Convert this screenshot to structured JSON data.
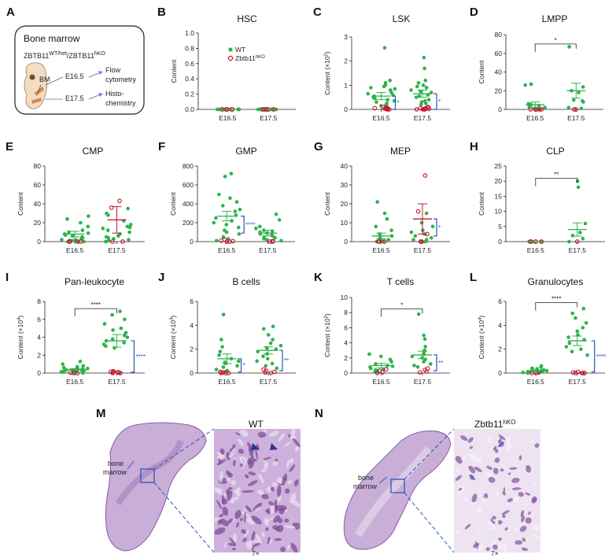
{
  "colors": {
    "wt": "#2db34a",
    "ko": "#c8102e",
    "blue": "#2a55b8",
    "he_bg": "#c4a6d0",
    "he_dark": "#6b3a86"
  },
  "schematic": {
    "title": "Bone marrow",
    "genotype_main": "ZBTB11",
    "genotype_sup1": "WT/het",
    "genotype_mid": "/ZBTB11",
    "genotype_sup2": "hKO",
    "bm": "BM",
    "e165": "E16.5",
    "e175": "E17.5",
    "flow1": "Flow",
    "flow2": "cytometry",
    "histo1": "Histo-",
    "histo2": "chemistry"
  },
  "legend": {
    "wt": "WT",
    "ko_main": "Zbtb11",
    "ko_sup": "hKO"
  },
  "histology": {
    "m_label": "M",
    "n_label": "N",
    "m_title": "WT",
    "n_title_main": "Zbtb11",
    "n_title_sup": "hKO",
    "bone1": "bone",
    "bone2": "marrow",
    "mag": "7×"
  },
  "chart_data": [
    {
      "panel": "A",
      "type": "diagram"
    },
    {
      "panel": "B",
      "type": "scatter",
      "title": "HSC",
      "ylabel": "Content",
      "ylabel_exp": "",
      "ylim": [
        0,
        1.0
      ],
      "yticks": [
        "0.0",
        "0.2",
        "0.4",
        "0.6",
        "0.8",
        "1.0"
      ],
      "categories": [
        "E16.5",
        "E17.5"
      ],
      "groups": [
        {
          "x": "E16.5",
          "wt": [
            0,
            0,
            0,
            0,
            0,
            0,
            0,
            0,
            0,
            0,
            0,
            0
          ],
          "ko": [
            0,
            0,
            0,
            0,
            0,
            0
          ],
          "mean": 0
        },
        {
          "x": "E17.5",
          "wt": [
            0,
            0,
            0,
            0,
            0,
            0,
            0,
            0,
            0,
            0,
            0,
            0
          ],
          "ko": [
            0,
            0,
            0,
            0,
            0,
            0
          ],
          "mean": 0
        }
      ],
      "brackets": [],
      "sig": []
    },
    {
      "panel": "C",
      "type": "scatter",
      "title": "LSK",
      "ylabel": "Content (×10",
      "ylabel_exp": "2",
      "ylim": [
        0,
        3
      ],
      "yticks": [
        "0",
        "1",
        "2",
        "3"
      ],
      "categories": [
        "E16.5",
        "E17.5"
      ],
      "groups": [
        {
          "x": "E16.5",
          "wt": [
            2.55,
            1.2,
            1.1,
            1.0,
            0.95,
            0.9,
            0.85,
            0.8,
            0.7,
            0.65,
            0.6,
            0.55,
            0.5,
            0.45,
            0.4,
            0.35,
            0.3,
            0.25,
            0.2,
            0.15
          ],
          "ko": [
            0.1,
            0.08,
            0.05,
            0.05,
            0.03,
            0.02,
            0.02,
            0.01,
            0.0,
            0.0
          ],
          "mean": 0.55,
          "err": 0.15
        },
        {
          "x": "E17.5",
          "wt": [
            2.15,
            1.7,
            1.2,
            1.1,
            1.0,
            0.95,
            0.9,
            0.8,
            0.75,
            0.7,
            0.6,
            0.55,
            0.5,
            0.4,
            0.35,
            0.3,
            0.25,
            0.2
          ],
          "ko": [
            0.1,
            0.08,
            0.05,
            0.05,
            0.03,
            0.02,
            0.01,
            0.0,
            0.0
          ],
          "mean": 0.65,
          "err": 0.15
        }
      ],
      "brackets": [
        {
          "x": "E16.5",
          "y1": 0.0,
          "y2": 0.55,
          "label": "*"
        },
        {
          "x": "E17.5",
          "y1": 0.0,
          "y2": 0.65,
          "label": "*"
        }
      ],
      "sig": []
    },
    {
      "panel": "D",
      "type": "scatter",
      "title": "LMPP",
      "ylabel": "Content",
      "ylabel_exp": "",
      "ylim": [
        0,
        80
      ],
      "yticks": [
        "0",
        "20",
        "40",
        "60",
        "80"
      ],
      "categories": [
        "E16.5",
        "E17.5"
      ],
      "groups": [
        {
          "x": "E16.5",
          "wt": [
            27,
            26,
            6,
            5,
            4,
            3,
            2,
            1,
            1,
            0
          ],
          "ko": [
            0,
            0,
            0,
            0,
            0
          ],
          "mean": 5,
          "err": 3
        },
        {
          "x": "E17.5",
          "wt": [
            67,
            24,
            20,
            18,
            10,
            9,
            8,
            2,
            1
          ],
          "ko": [
            0,
            0
          ],
          "mean": 20,
          "err": 8
        }
      ],
      "brackets": [],
      "sig": [
        {
          "from": "E16.5",
          "to": "E17.5",
          "y": 70,
          "label": "*"
        }
      ]
    },
    {
      "panel": "E",
      "type": "scatter",
      "title": "CMP",
      "ylabel": "Content",
      "ylabel_exp": "",
      "ylim": [
        0,
        80
      ],
      "yticks": [
        "0",
        "20",
        "40",
        "60",
        "80"
      ],
      "categories": [
        "E16.5",
        "E17.5"
      ],
      "groups": [
        {
          "x": "E16.5",
          "wt": [
            27,
            24,
            20,
            16,
            12,
            10,
            9,
            8,
            7,
            6,
            5,
            4,
            3,
            2,
            2,
            1,
            1,
            0,
            0,
            0
          ],
          "ko": [
            0,
            0,
            0,
            0
          ],
          "mean": 8,
          "err": 3
        },
        {
          "x": "E17.5",
          "wt": [
            35,
            30,
            28,
            22,
            18,
            16,
            15,
            14,
            12,
            10,
            8,
            6,
            5,
            4,
            3,
            2,
            1,
            0
          ],
          "ko": [
            43,
            36,
            0,
            0
          ],
          "mean": 23,
          "err": 14
        }
      ],
      "brackets": [],
      "sig": []
    },
    {
      "panel": "F",
      "type": "scatter",
      "title": "GMP",
      "ylabel": "Content",
      "ylabel_exp": "",
      "ylim": [
        0,
        800
      ],
      "yticks": [
        "0",
        "200",
        "400",
        "600",
        "800"
      ],
      "categories": [
        "E16.5",
        "E17.5"
      ],
      "groups": [
        {
          "x": "E16.5",
          "wt": [
            720,
            690,
            500,
            460,
            420,
            380,
            340,
            320,
            280,
            250,
            220,
            200,
            180,
            150,
            120,
            100,
            80,
            50,
            30,
            10
          ],
          "ko": [
            20,
            10,
            5,
            0,
            0
          ],
          "mean": 270,
          "err": 50
        },
        {
          "x": "E17.5",
          "wt": [
            290,
            230,
            160,
            140,
            120,
            110,
            100,
            90,
            80,
            70,
            60,
            50,
            40,
            30,
            20,
            10
          ],
          "ko": [
            5,
            0,
            0
          ],
          "mean": 90,
          "err": 30
        }
      ],
      "brackets": [
        {
          "x": "E16.5",
          "y1": 90,
          "y2": 270,
          "label": "****",
          "span": true
        }
      ],
      "sig": []
    },
    {
      "panel": "G",
      "type": "scatter",
      "title": "MEP",
      "ylabel": "Content",
      "ylabel_exp": "",
      "ylim": [
        0,
        40
      ],
      "yticks": [
        "0",
        "10",
        "20",
        "30",
        "40"
      ],
      "categories": [
        "E16.5",
        "E17.5"
      ],
      "groups": [
        {
          "x": "E16.5",
          "wt": [
            21,
            15,
            12,
            8,
            6,
            4,
            3,
            2,
            1,
            1,
            0,
            0
          ],
          "ko": [
            0,
            0,
            0
          ],
          "mean": 3,
          "err": 1.5
        },
        {
          "x": "E17.5",
          "wt": [
            15,
            10,
            8,
            6,
            5,
            4,
            3,
            2,
            1,
            1,
            0,
            0
          ],
          "ko": [
            35,
            16,
            4,
            0,
            0
          ],
          "mean": 12,
          "err": 8
        }
      ],
      "brackets": [
        {
          "x": "E17.5",
          "y1": 3,
          "y2": 12,
          "label": "*"
        }
      ],
      "sig": []
    },
    {
      "panel": "H",
      "type": "scatter",
      "title": "CLP",
      "ylabel": "Content",
      "ylabel_exp": "",
      "ylim": [
        0,
        25
      ],
      "yticks": [
        "0",
        "5",
        "10",
        "15",
        "20",
        "25"
      ],
      "categories": [
        "E16.5",
        "E17.5"
      ],
      "groups": [
        {
          "x": "E16.5",
          "wt": [
            0,
            0,
            0,
            0,
            0
          ],
          "ko": [
            0,
            0,
            0,
            0,
            0
          ],
          "mean": 0
        },
        {
          "x": "E17.5",
          "wt": [
            20,
            18,
            6,
            3,
            2,
            1,
            0
          ],
          "ko": [
            0
          ],
          "mean": 4,
          "err": 2.2
        }
      ],
      "brackets": [],
      "sig": [
        {
          "from": "E16.5",
          "to": "E17.5",
          "y": 21,
          "label": "**"
        }
      ]
    },
    {
      "panel": "I",
      "type": "scatter",
      "title": "Pan-leukocyte",
      "ylabel": "Content (×10",
      "ylabel_exp": "4",
      "ylim": [
        0,
        8
      ],
      "yticks": [
        "0",
        "2",
        "4",
        "6",
        "8"
      ],
      "categories": [
        "E16.5",
        "E17.5"
      ],
      "groups": [
        {
          "x": "E16.5",
          "wt": [
            1.3,
            1.0,
            0.8,
            0.7,
            0.6,
            0.55,
            0.5,
            0.45,
            0.4,
            0.35,
            0.3,
            0.3,
            0.25,
            0.2,
            0.2,
            0.15,
            0.1,
            0.1,
            0.05,
            0.0
          ],
          "ko": [
            0.05,
            0.0,
            0.0
          ],
          "mean": 0.4,
          "err": 0.1
        },
        {
          "x": "E17.5",
          "wt": [
            6.9,
            6.5,
            6.0,
            5.5,
            5.0,
            4.8,
            4.5,
            4.2,
            4.0,
            3.8,
            3.6,
            3.4,
            3.2,
            3.0,
            2.8
          ],
          "ko": [
            0.2,
            0.15,
            0.1,
            0.1,
            0.05,
            0.0,
            0.0
          ],
          "mean": 3.6,
          "err": 0.7
        }
      ],
      "brackets": [
        {
          "x": "E17.5",
          "y1": 0.1,
          "y2": 3.6,
          "label": "****",
          "span": true
        }
      ],
      "sig": [
        {
          "from": "E16.5",
          "to": "E17.5",
          "y": 7.2,
          "label": "****"
        }
      ]
    },
    {
      "panel": "J",
      "type": "scatter",
      "title": "B cells",
      "ylabel": "Content (×10",
      "ylabel_exp": "3",
      "ylim": [
        0,
        6
      ],
      "yticks": [
        "0",
        "2",
        "4",
        "6"
      ],
      "categories": [
        "E16.5",
        "E17.5"
      ],
      "groups": [
        {
          "x": "E16.5",
          "wt": [
            4.9,
            2.8,
            2.2,
            1.8,
            1.5,
            1.2,
            1.0,
            0.9,
            0.8,
            0.6,
            0.5,
            0.3,
            0.2,
            0.1
          ],
          "ko": [
            0.1,
            0.05,
            0.0,
            0.0,
            0.0
          ],
          "mean": 1.2,
          "err": 0.4
        },
        {
          "x": "E17.5",
          "wt": [
            3.9,
            3.7,
            3.2,
            2.8,
            2.5,
            2.3,
            2.1,
            2.0,
            1.8,
            1.6,
            1.4,
            1.2,
            1.0,
            0.8,
            0.6,
            0.4
          ],
          "ko": [
            0.3,
            0.2,
            0.1,
            0.05,
            0.0
          ],
          "mean": 1.9,
          "err": 0.3
        }
      ],
      "brackets": [
        {
          "x": "E16.5",
          "y1": 0.1,
          "y2": 1.2,
          "label": "*"
        },
        {
          "x": "E17.5",
          "y1": 0.2,
          "y2": 1.9,
          "label": "**"
        }
      ],
      "sig": []
    },
    {
      "panel": "K",
      "type": "scatter",
      "title": "T cells",
      "ylabel": "Content (×10",
      "ylabel_exp": "2",
      "ylim": [
        0,
        10
      ],
      "yticks": [
        "0",
        "2",
        "4",
        "6",
        "8",
        "10"
      ],
      "categories": [
        "E16.5",
        "E17.5"
      ],
      "groups": [
        {
          "x": "E16.5",
          "wt": [
            2.5,
            2.2,
            1.8,
            1.5,
            1.2,
            1.0,
            0.9,
            0.8,
            0.6,
            0.5,
            0.4,
            0.3,
            0.2,
            0.1
          ],
          "ko": [
            0.5,
            0.3,
            0.1,
            0.0
          ],
          "mean": 1.0,
          "err": 0.3
        },
        {
          "x": "E17.5",
          "wt": [
            7.8,
            5.0,
            4.5,
            3.5,
            3.0,
            2.8,
            2.5,
            2.2,
            2.0,
            1.8,
            1.5,
            1.2,
            1.0,
            0.8
          ],
          "ko": [
            0.6,
            0.4,
            0.2,
            0.1
          ],
          "mean": 2.4,
          "err": 0.5
        }
      ],
      "brackets": [
        {
          "x": "E17.5",
          "y1": 0.3,
          "y2": 2.4,
          "label": "**"
        }
      ],
      "sig": [
        {
          "from": "E16.5",
          "to": "E17.5",
          "y": 8.5,
          "label": "*"
        }
      ]
    },
    {
      "panel": "L",
      "type": "scatter",
      "title": "Granulocytes",
      "ylabel": "Content (×10",
      "ylabel_exp": "4",
      "ylim": [
        0,
        6
      ],
      "yticks": [
        "0",
        "2",
        "4",
        "6"
      ],
      "categories": [
        "E16.5",
        "E17.5"
      ],
      "groups": [
        {
          "x": "E16.5",
          "wt": [
            0.6,
            0.5,
            0.4,
            0.35,
            0.3,
            0.25,
            0.2,
            0.2,
            0.15,
            0.1,
            0.1,
            0.05,
            0.05,
            0.0
          ],
          "ko": [
            0.05,
            0.0,
            0.0
          ],
          "mean": 0.2,
          "err": 0.05
        },
        {
          "x": "E17.5",
          "wt": [
            5.4,
            5.0,
            4.6,
            4.2,
            3.8,
            3.5,
            3.2,
            3.0,
            2.8,
            2.5,
            2.2,
            2.0,
            1.8,
            1.5
          ],
          "ko": [
            0.1,
            0.05,
            0.0,
            0.0,
            0.0,
            0.0
          ],
          "mean": 2.7,
          "err": 0.4
        }
      ],
      "brackets": [
        {
          "x": "E17.5",
          "y1": 0.1,
          "y2": 2.7,
          "label": "****",
          "span": true
        }
      ],
      "sig": [
        {
          "from": "E16.5",
          "to": "E17.5",
          "y": 5.9,
          "label": "****"
        }
      ]
    }
  ]
}
